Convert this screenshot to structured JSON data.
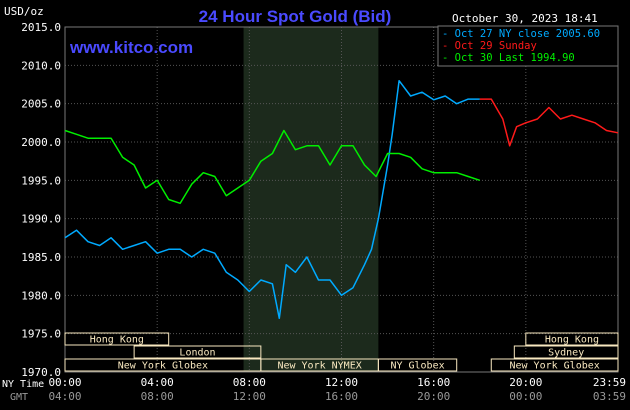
{
  "header": {
    "title": "24 Hour Spot Gold (Bid)",
    "units": "USD/oz",
    "timestamp": "October 30, 2023 18:41",
    "watermark": "www.kitco.com"
  },
  "colors": {
    "background": "#000000",
    "grid": "#555555",
    "title": "#4a4aff",
    "watermark": "#4a4aff",
    "highlight": "#1c2a1c",
    "series_cyan": "#00aaff",
    "series_red": "#ff1a1a",
    "series_green": "#00ee00",
    "session_bg": "#f8e8c0",
    "axis_text": "#ffffff",
    "gmt_text": "#999999"
  },
  "axis_labels": {
    "ny_time": "NY Time",
    "gmt": "GMT"
  },
  "chart_data": {
    "type": "line",
    "title": "24 Hour Spot Gold (Bid)",
    "ylabel": "USD/oz",
    "ylim": [
      1970,
      2015
    ],
    "y_ticks": [
      "2015.0",
      "2010.0",
      "2005.0",
      "2000.0",
      "1995.0",
      "1990.0",
      "1985.0",
      "1980.0",
      "1975.0",
      "1970.0"
    ],
    "x_ticks_ny": [
      "00:00",
      "04:00",
      "08:00",
      "12:00",
      "16:00",
      "20:00",
      "23:59"
    ],
    "x_ticks_gmt": [
      "04:00",
      "08:00",
      "12:00",
      "16:00",
      "20:00",
      "00:00",
      "03:59"
    ],
    "xlim": [
      0,
      24
    ],
    "grid": true,
    "legend_position": "top-right",
    "legend": [
      {
        "label": "Oct 27 NY close 2005.60",
        "color": "#00aaff"
      },
      {
        "label": "Oct 29 Sunday",
        "color": "#ff1a1a"
      },
      {
        "label": "Oct 30 Last 1994.90",
        "color": "#00ee00"
      }
    ],
    "highlight_range": [
      7.75,
      13.6
    ],
    "series": [
      {
        "name": "Oct 27 NY close 2005.60",
        "color": "#00aaff",
        "x": [
          0,
          0.5,
          1,
          1.5,
          2,
          2.5,
          3,
          3.5,
          4,
          4.5,
          5,
          5.5,
          6,
          6.5,
          7,
          7.5,
          8,
          8.5,
          9,
          9.3,
          9.6,
          10,
          10.5,
          11,
          11.5,
          12,
          12.5,
          13,
          13.3,
          13.6,
          14,
          14.2,
          14.5,
          15,
          15.5,
          16,
          16.5,
          17,
          17.5,
          18
        ],
        "y": [
          1987.5,
          1988.5,
          1987.0,
          1986.5,
          1987.5,
          1986.0,
          1986.5,
          1987.0,
          1985.5,
          1986.0,
          1986.0,
          1985.0,
          1986.0,
          1985.5,
          1983.0,
          1982.0,
          1980.5,
          1982.0,
          1981.5,
          1977.0,
          1984.0,
          1983.0,
          1985.0,
          1982.0,
          1982.0,
          1980.0,
          1981.0,
          1984.0,
          1986.0,
          1990.0,
          1997.0,
          2001.0,
          2008.0,
          2006.0,
          2006.5,
          2005.5,
          2006.0,
          2005.0,
          2005.6,
          2005.6
        ]
      },
      {
        "name": "Oct 29 Sunday",
        "color": "#ff1a1a",
        "x": [
          18,
          18.5,
          19,
          19.3,
          19.6,
          20,
          20.5,
          21,
          21.5,
          22,
          22.5,
          23,
          23.5,
          24
        ],
        "y": [
          2005.6,
          2005.6,
          2003.0,
          1999.5,
          2002.0,
          2002.5,
          2003.0,
          2004.5,
          2003.0,
          2003.5,
          2003.0,
          2002.5,
          2001.5,
          2001.2
        ]
      },
      {
        "name": "Oct 30 Last 1994.90",
        "color": "#00ee00",
        "x": [
          0,
          0.5,
          1,
          1.5,
          2,
          2.5,
          3,
          3.5,
          4,
          4.5,
          5,
          5.5,
          6,
          6.5,
          7,
          7.5,
          8,
          8.5,
          9,
          9.5,
          10,
          10.5,
          11,
          11.5,
          12,
          12.5,
          13,
          13.5,
          14,
          14.5,
          15,
          15.5,
          16,
          16.5,
          17,
          17.5,
          18
        ],
        "y": [
          2001.5,
          2001.0,
          2000.5,
          2000.5,
          2000.5,
          1998.0,
          1997.0,
          1994.0,
          1995.0,
          1992.5,
          1992.0,
          1994.5,
          1996.0,
          1995.5,
          1993.0,
          1994.0,
          1995.0,
          1997.5,
          1998.5,
          2001.5,
          1999.0,
          1999.5,
          1999.5,
          1997.0,
          1999.5,
          1999.5,
          1997.0,
          1995.5,
          1998.5,
          1998.5,
          1998.0,
          1996.5,
          1996.0,
          1996.0,
          1996.0,
          1995.5,
          1995.0
        ]
      }
    ],
    "sessions": [
      {
        "label": "Hong Kong",
        "start": 0,
        "end": 4.5,
        "row": 0
      },
      {
        "label": "London",
        "start": 3,
        "end": 8.5,
        "row": 1
      },
      {
        "label": "New York Globex",
        "start": 0,
        "end": 8.5,
        "row": 2
      },
      {
        "label": "New York NYMEX",
        "start": 8.5,
        "end": 13.6,
        "row": 2
      },
      {
        "label": "NY Globex",
        "start": 13.6,
        "end": 17.0,
        "row": 2
      },
      {
        "label": "Hong Kong",
        "start": 20.0,
        "end": 24,
        "row": 0
      },
      {
        "label": "Sydney",
        "start": 19.5,
        "end": 24,
        "row": 1
      },
      {
        "label": "New York Globex",
        "start": 18.5,
        "end": 24,
        "row": 2
      }
    ]
  }
}
